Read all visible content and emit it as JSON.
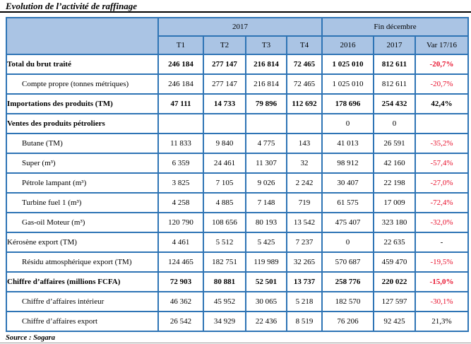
{
  "title": "Evolution de l’activité de raffinage",
  "source": "Source : Sogara",
  "colors": {
    "table_border": "#2e74b5",
    "header_bg": "#aac4e4",
    "negative_value": "#e8112d",
    "text": "#000000"
  },
  "header": {
    "group_2017": "2017",
    "group_fin_decembre": "Fin décembre",
    "cols": [
      "T1",
      "T2",
      "T3",
      "T4",
      "2016",
      "2017",
      "Var 17/16"
    ]
  },
  "table": {
    "rows": [
      {
        "label": "Total du brut traité",
        "bold": true,
        "indent": false,
        "values": [
          "246 184",
          "277 147",
          "216 814",
          "72 465",
          "1 025 010",
          "812 611"
        ],
        "var": "-20,7%",
        "var_negative": true
      },
      {
        "label": "Compte propre (tonnes métriques)",
        "bold": false,
        "indent": true,
        "values": [
          "246 184",
          "277 147",
          "216 814",
          "72 465",
          "1 025 010",
          "812 611"
        ],
        "var": "-20,7%",
        "var_negative": true
      },
      {
        "label": "Importations des produits (TM)",
        "bold": true,
        "indent": false,
        "values": [
          "47 111",
          "14 733",
          "79 896",
          "112 692",
          "178 696",
          "254 432"
        ],
        "var": "42,4%",
        "var_negative": false
      },
      {
        "label": "Ventes des produits pétroliers",
        "bold": true,
        "indent": false,
        "values": [
          "",
          "",
          "",
          "",
          "0",
          "0"
        ],
        "values_regular": true,
        "var": "",
        "var_negative": false
      },
      {
        "label": "Butane (TM)",
        "bold": false,
        "indent": true,
        "values": [
          "11 833",
          "9 840",
          "4 775",
          "143",
          "41 013",
          "26 591"
        ],
        "var": "-35,2%",
        "var_negative": true
      },
      {
        "label": "Super (m³)",
        "bold": false,
        "indent": true,
        "values": [
          "6 359",
          "24 461",
          "11 307",
          "32",
          "98 912",
          "42 160"
        ],
        "var": "-57,4%",
        "var_negative": true
      },
      {
        "label": "Pétrole lampant (m³)",
        "bold": false,
        "indent": true,
        "values": [
          "3 825",
          "7 105",
          "9 026",
          "2 242",
          "30 407",
          "22 198"
        ],
        "var": "-27,0%",
        "var_negative": true
      },
      {
        "label": "Turbine fuel 1 (m³)",
        "bold": false,
        "indent": true,
        "values": [
          "4 258",
          "4 885",
          "7 148",
          "719",
          "61 575",
          "17 009"
        ],
        "var": "-72,4%",
        "var_negative": true
      },
      {
        "label": "Gas-oil Moteur (m³)",
        "bold": false,
        "indent": true,
        "values": [
          "120 790",
          "108 656",
          "80 193",
          "13 542",
          "475 407",
          "323 180"
        ],
        "var": "-32,0%",
        "var_negative": true
      },
      {
        "label": "Kérosène export (TM)",
        "bold": false,
        "indent": false,
        "values": [
          "4 461",
          "5 512",
          "5 425",
          "7 237",
          "0",
          "22 635"
        ],
        "var": "-",
        "var_negative": false
      },
      {
        "label": "Résidu atmosphérique export (TM)",
        "bold": false,
        "indent": true,
        "values": [
          "124 465",
          "182 751",
          "119 989",
          "32 265",
          "570 687",
          "459 470"
        ],
        "var": "-19,5%",
        "var_negative": true
      },
      {
        "label": "Chiffre d’affaires (millions FCFA)",
        "bold": true,
        "indent": false,
        "values": [
          "72 903",
          "80 881",
          "52 501",
          "13 737",
          "258 776",
          "220 022"
        ],
        "var": "-15,0%",
        "var_negative": true
      },
      {
        "label": "Chiffre d’affaires intérieur",
        "bold": false,
        "indent": true,
        "values": [
          "46 362",
          "45 952",
          "30 065",
          "5 218",
          "182 570",
          "127 597"
        ],
        "var": "-30,1%",
        "var_negative": true
      },
      {
        "label": "Chiffre d’affaires export",
        "bold": false,
        "indent": true,
        "values": [
          "26 542",
          "34 929",
          "22 436",
          "8 519",
          "76 206",
          "92 425"
        ],
        "var": "21,3%",
        "var_negative": false
      }
    ]
  }
}
